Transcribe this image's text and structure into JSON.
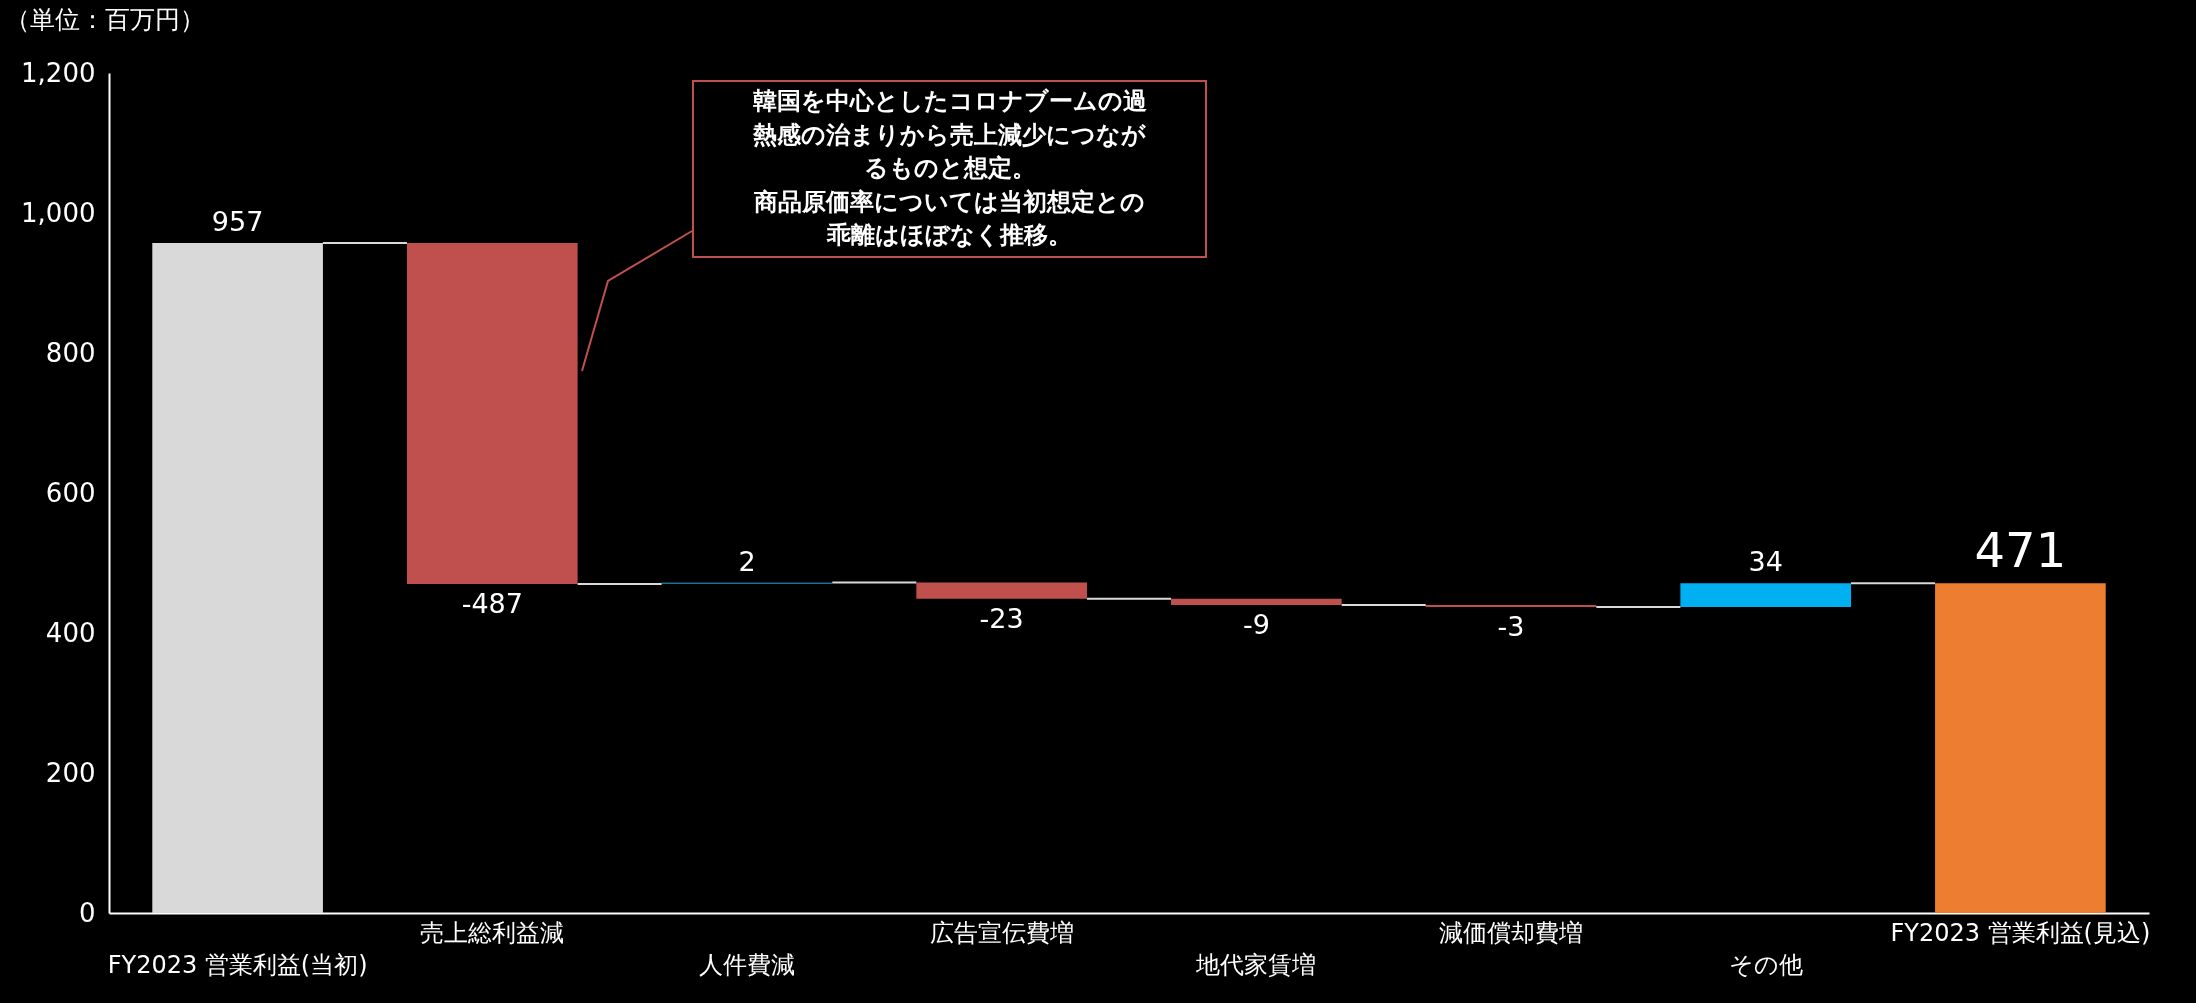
{
  "chart_data": {
    "type": "bar",
    "ylabel": "（単位：百万円）",
    "categories": [
      "FY2023 営業利益(当初)",
      "売上総利益減",
      "人件費減",
      "広告宣伝費増",
      "地代家賃増",
      "減価償却費増",
      "その他",
      "FY2023 営業利益(見込)"
    ],
    "values": [
      957,
      -487,
      2,
      -23,
      -9,
      -3,
      34,
      471
    ],
    "base": [
      0,
      957,
      470,
      472,
      449,
      440,
      437,
      0
    ],
    "colors": [
      "#d9d9d9",
      "#c0504d",
      "#1f6f95",
      "#c0504d",
      "#c0504d",
      "#c0504d",
      "#00b0f0",
      "#ed7d31"
    ],
    "ylim": [
      0,
      1200
    ],
    "yticks": [
      0,
      200,
      400,
      600,
      800,
      {
        "value": 1000,
        "label": "1,000"
      },
      {
        "value": 1200,
        "label": "1,200"
      }
    ],
    "data_labels": true,
    "grid": false,
    "legend": false,
    "annotations": [
      "韓国を中心としたコロナブームの過熱感の治まりから売上減少につながるものと想定。商品原価率については当初想定との乖離はほぼなく推移。"
    ]
  }
}
